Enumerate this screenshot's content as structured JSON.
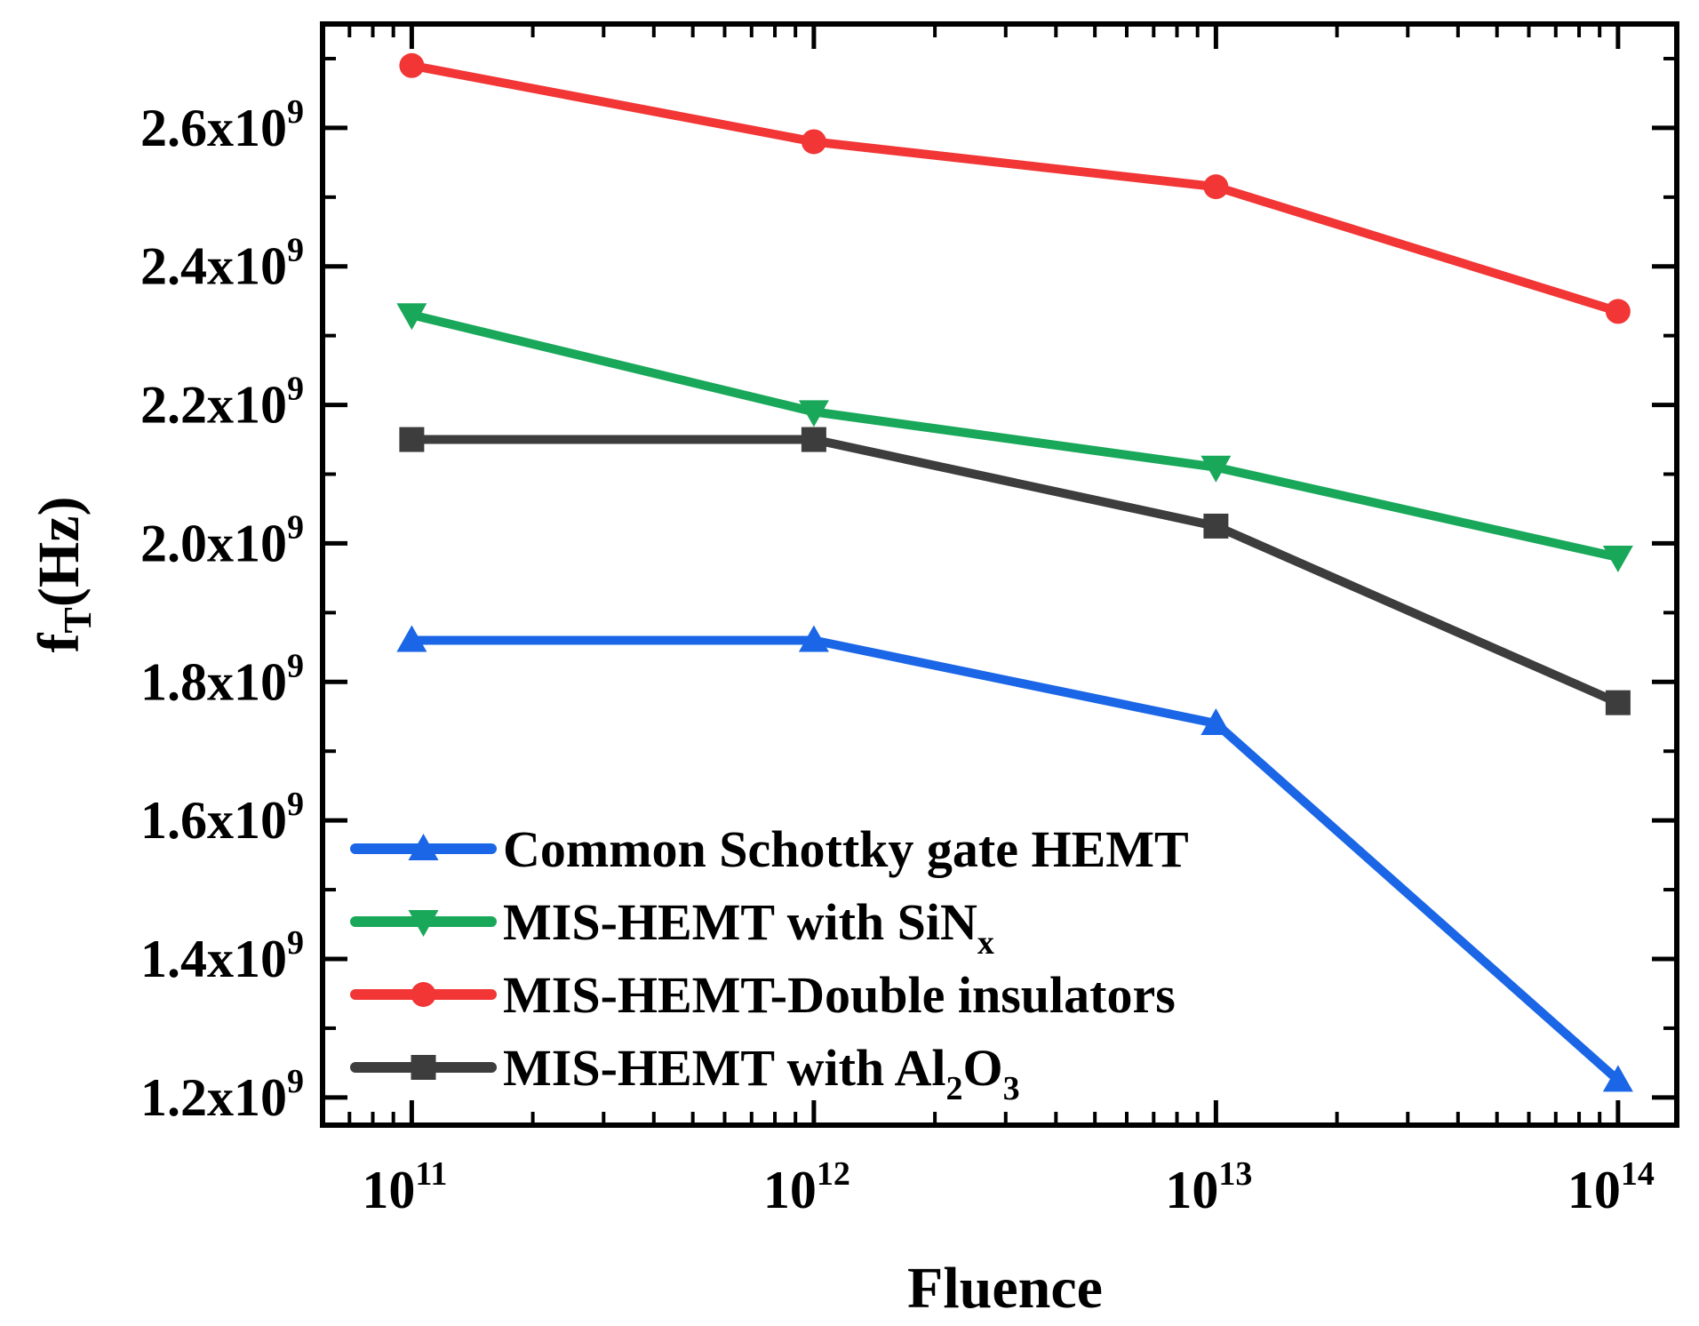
{
  "chart_data": {
    "type": "line",
    "xscale": "log",
    "x": [
      100000000000.0,
      1000000000000.0,
      10000000000000.0,
      100000000000000.0
    ],
    "xlim": [
      60000000000.0,
      140000000000000.0
    ],
    "ylim": [
      1160000000.0,
      2750000000.0
    ],
    "xlabel": "Fluence",
    "ylabel": {
      "main": "f",
      "sub": "T",
      "rest": "(Hz)"
    },
    "x_ticks": [
      {
        "value": 100000000000.0,
        "base": "10",
        "exp": "11"
      },
      {
        "value": 1000000000000.0,
        "base": "10",
        "exp": "12"
      },
      {
        "value": 10000000000000.0,
        "base": "10",
        "exp": "13"
      },
      {
        "value": 100000000000000.0,
        "base": "10",
        "exp": "14"
      }
    ],
    "y_ticks": [
      {
        "value": 1200000000.0,
        "mant": "1.2x10",
        "exp": "9"
      },
      {
        "value": 1400000000.0,
        "mant": "1.4x10",
        "exp": "9"
      },
      {
        "value": 1600000000.0,
        "mant": "1.6x10",
        "exp": "9"
      },
      {
        "value": 1800000000.0,
        "mant": "1.8x10",
        "exp": "9"
      },
      {
        "value": 2000000000.0,
        "mant": "2.0x10",
        "exp": "9"
      },
      {
        "value": 2200000000.0,
        "mant": "2.2x10",
        "exp": "9"
      },
      {
        "value": 2400000000.0,
        "mant": "2.4x10",
        "exp": "9"
      },
      {
        "value": 2600000000.0,
        "mant": "2.6x10",
        "exp": "9"
      }
    ],
    "series": [
      {
        "key": "schottky",
        "color": "#1a66e6",
        "marker": "triangle-up",
        "values": [
          1860000000.0,
          1860000000.0,
          1740000000.0,
          1225000000.0
        ]
      },
      {
        "key": "sinx",
        "color": "#19a85a",
        "marker": "triangle-down",
        "values": [
          2330000000.0,
          2190000000.0,
          2110000000.0,
          1980000000.0
        ]
      },
      {
        "key": "double",
        "color": "#f23535",
        "marker": "circle",
        "values": [
          2690000000.0,
          2580000000.0,
          2515000000.0,
          2335000000.0
        ]
      },
      {
        "key": "al2o3",
        "color": "#3d3d3d",
        "marker": "square",
        "values": [
          2150000000.0,
          2150000000.0,
          2025000000.0,
          1770000000.0
        ]
      }
    ],
    "legend": {
      "placement": "bottom-left",
      "entries": [
        {
          "text": "Common Schottky gate HEMT",
          "sub1": "",
          "mid": "",
          "sub2": ""
        },
        {
          "text": "MIS-HEMT with SiN",
          "sub1": "x",
          "mid": "",
          "sub2": ""
        },
        {
          "text": "MIS-HEMT-Double insulators",
          "sub1": "",
          "mid": "",
          "sub2": ""
        },
        {
          "text": "MIS-HEMT with Al",
          "sub1": "2",
          "mid": "O",
          "sub2": "3"
        }
      ]
    },
    "grid": false
  }
}
